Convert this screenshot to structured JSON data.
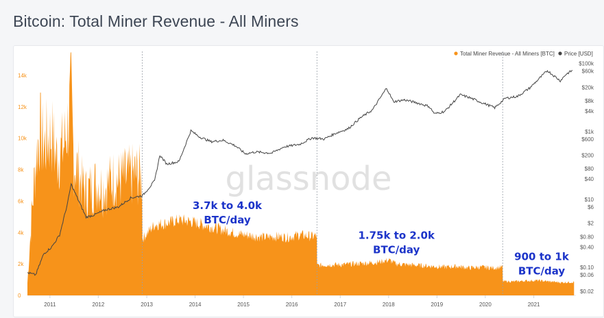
{
  "title": "Bitcoin: Total Miner Revenue - All Miners",
  "watermark": "glassnode",
  "colors": {
    "revenue": "#f7931a",
    "price": "#444444",
    "annotation": "#1c34c9",
    "left_axis": "#f7931a",
    "right_axis": "#555555"
  },
  "chart_data": {
    "type": "area",
    "legend_position": "top-right",
    "series": [
      {
        "name": "Total Miner Revenue - All Miners [BTC]",
        "kind": "area",
        "axis": "left",
        "x": [
          "2010-07-15",
          "2010-08-15",
          "2010-09-15",
          "2010-10-15",
          "2010-11-15",
          "2010-12-15",
          "2011-01-15",
          "2011-02-15",
          "2011-03-15",
          "2011-04-15",
          "2011-05-15",
          "2011-06-10",
          "2011-07-01",
          "2011-08-01",
          "2011-09-01",
          "2011-10-01",
          "2011-11-01",
          "2011-12-01",
          "2012-01-01",
          "2012-02-01",
          "2012-03-01",
          "2012-04-01",
          "2012-05-01",
          "2012-06-01",
          "2012-07-01",
          "2012-08-01",
          "2012-09-01",
          "2012-10-01",
          "2012-11-27",
          "2012-11-29",
          "2013-03-01",
          "2013-06-01",
          "2013-09-01",
          "2013-12-01",
          "2014-03-01",
          "2014-06-01",
          "2014-09-01",
          "2014-12-01",
          "2015-03-01",
          "2015-06-01",
          "2015-09-01",
          "2015-12-01",
          "2016-03-01",
          "2016-06-01",
          "2016-07-08",
          "2016-07-10",
          "2016-10-01",
          "2017-01-01",
          "2017-04-01",
          "2017-07-01",
          "2017-10-01",
          "2018-01-01",
          "2018-03-01",
          "2018-06-01",
          "2018-09-01",
          "2018-12-01",
          "2019-03-01",
          "2019-06-01",
          "2019-09-01",
          "2019-12-01",
          "2020-03-01",
          "2020-05-10",
          "2020-05-12",
          "2020-08-01",
          "2020-11-01",
          "2021-02-01",
          "2021-05-01",
          "2021-08-01",
          "2021-11-01"
        ],
        "values": [
          800,
          5000,
          8500,
          10500,
          9500,
          10000,
          10200,
          8800,
          9000,
          9500,
          10800,
          12500,
          8500,
          8000,
          7000,
          6500,
          6800,
          7000,
          7200,
          6800,
          7000,
          7200,
          7500,
          7300,
          7500,
          7400,
          7600,
          7700,
          7500,
          3600,
          4500,
          4600,
          4800,
          4700,
          4500,
          4300,
          4100,
          3900,
          3800,
          3700,
          3750,
          3700,
          3850,
          3750,
          3800,
          1900,
          1950,
          1950,
          2000,
          2050,
          2100,
          2250,
          2000,
          1950,
          1900,
          1850,
          1800,
          1850,
          1750,
          1800,
          1750,
          1800,
          900,
          880,
          930,
          950,
          880,
          820,
          850
        ]
      },
      {
        "name": "Price [USD]",
        "kind": "line",
        "axis": "right",
        "scale": "log",
        "x": [
          "2010-07-15",
          "2010-09-15",
          "2010-11-15",
          "2011-01-15",
          "2011-03-15",
          "2011-05-15",
          "2011-06-10",
          "2011-08-01",
          "2011-10-01",
          "2011-12-01",
          "2012-03-01",
          "2012-06-01",
          "2012-09-01",
          "2012-12-01",
          "2013-03-01",
          "2013-04-10",
          "2013-06-01",
          "2013-09-01",
          "2013-11-30",
          "2014-02-01",
          "2014-05-01",
          "2014-08-01",
          "2014-11-01",
          "2015-01-15",
          "2015-04-01",
          "2015-08-01",
          "2015-11-01",
          "2016-03-01",
          "2016-06-01",
          "2016-09-01",
          "2016-12-01",
          "2017-03-01",
          "2017-06-01",
          "2017-09-01",
          "2017-12-17",
          "2018-02-06",
          "2018-05-01",
          "2018-08-01",
          "2018-11-01",
          "2018-12-15",
          "2019-03-01",
          "2019-06-26",
          "2019-09-01",
          "2019-12-01",
          "2020-03-12",
          "2020-06-01",
          "2020-09-01",
          "2020-12-01",
          "2021-02-01",
          "2021-04-14",
          "2021-07-20",
          "2021-09-01",
          "2021-10-20"
        ],
        "values": [
          0.07,
          0.06,
          0.25,
          0.4,
          0.9,
          8,
          28,
          10,
          3,
          3.5,
          5,
          6,
          11,
          13,
          35,
          200,
          110,
          130,
          1050,
          700,
          500,
          550,
          380,
          220,
          250,
          230,
          350,
          420,
          650,
          600,
          900,
          1200,
          2500,
          4300,
          19000,
          7500,
          8500,
          7000,
          5500,
          3300,
          3900,
          12000,
          10000,
          7200,
          5000,
          9500,
          10800,
          19000,
          33000,
          62000,
          31000,
          48000,
          63000
        ]
      }
    ],
    "y_left": {
      "ylim": [
        0,
        15000
      ],
      "ticks": [
        0,
        2000,
        4000,
        6000,
        8000,
        10000,
        12000,
        14000
      ],
      "tick_labels": [
        "0",
        "2k",
        "4k",
        "6k",
        "8k",
        "10k",
        "12k",
        "14k"
      ]
    },
    "y_right": {
      "tick_values": [
        0.02,
        0.06,
        0.1,
        0.4,
        0.8,
        2,
        6,
        10,
        40,
        80,
        200,
        600,
        1000,
        4000,
        8000,
        20000,
        60000,
        100000
      ],
      "tick_labels": [
        "$0.02",
        "$0.06",
        "$0.10",
        "$0.40",
        "$0.80",
        "$2",
        "$6",
        "$10",
        "$40",
        "$80",
        "$200",
        "$600",
        "$1k",
        "$4k",
        "$8k",
        "$20k",
        "$60k",
        "$100k"
      ]
    },
    "x_axis": {
      "start": "2010-07-15",
      "end": "2021-11-15",
      "tick_labels": [
        "2011",
        "2012",
        "2013",
        "2014",
        "2015",
        "2016",
        "2017",
        "2018",
        "2019",
        "2020",
        "2021"
      ]
    },
    "halving_dates": [
      "2012-11-28",
      "2016-07-09",
      "2020-05-11"
    ],
    "annotations": [
      {
        "lines": [
          "3.7k to 4.0k",
          "BTC/day"
        ],
        "x": "2014-09-01",
        "y": 5500
      },
      {
        "lines": [
          "1.75k to 2.0k",
          "BTC/day"
        ],
        "x": "2018-03-01",
        "y": 3600
      },
      {
        "lines": [
          "900 to 1k",
          "BTC/day"
        ],
        "x": "2021-03-01",
        "y": 2250
      }
    ]
  }
}
